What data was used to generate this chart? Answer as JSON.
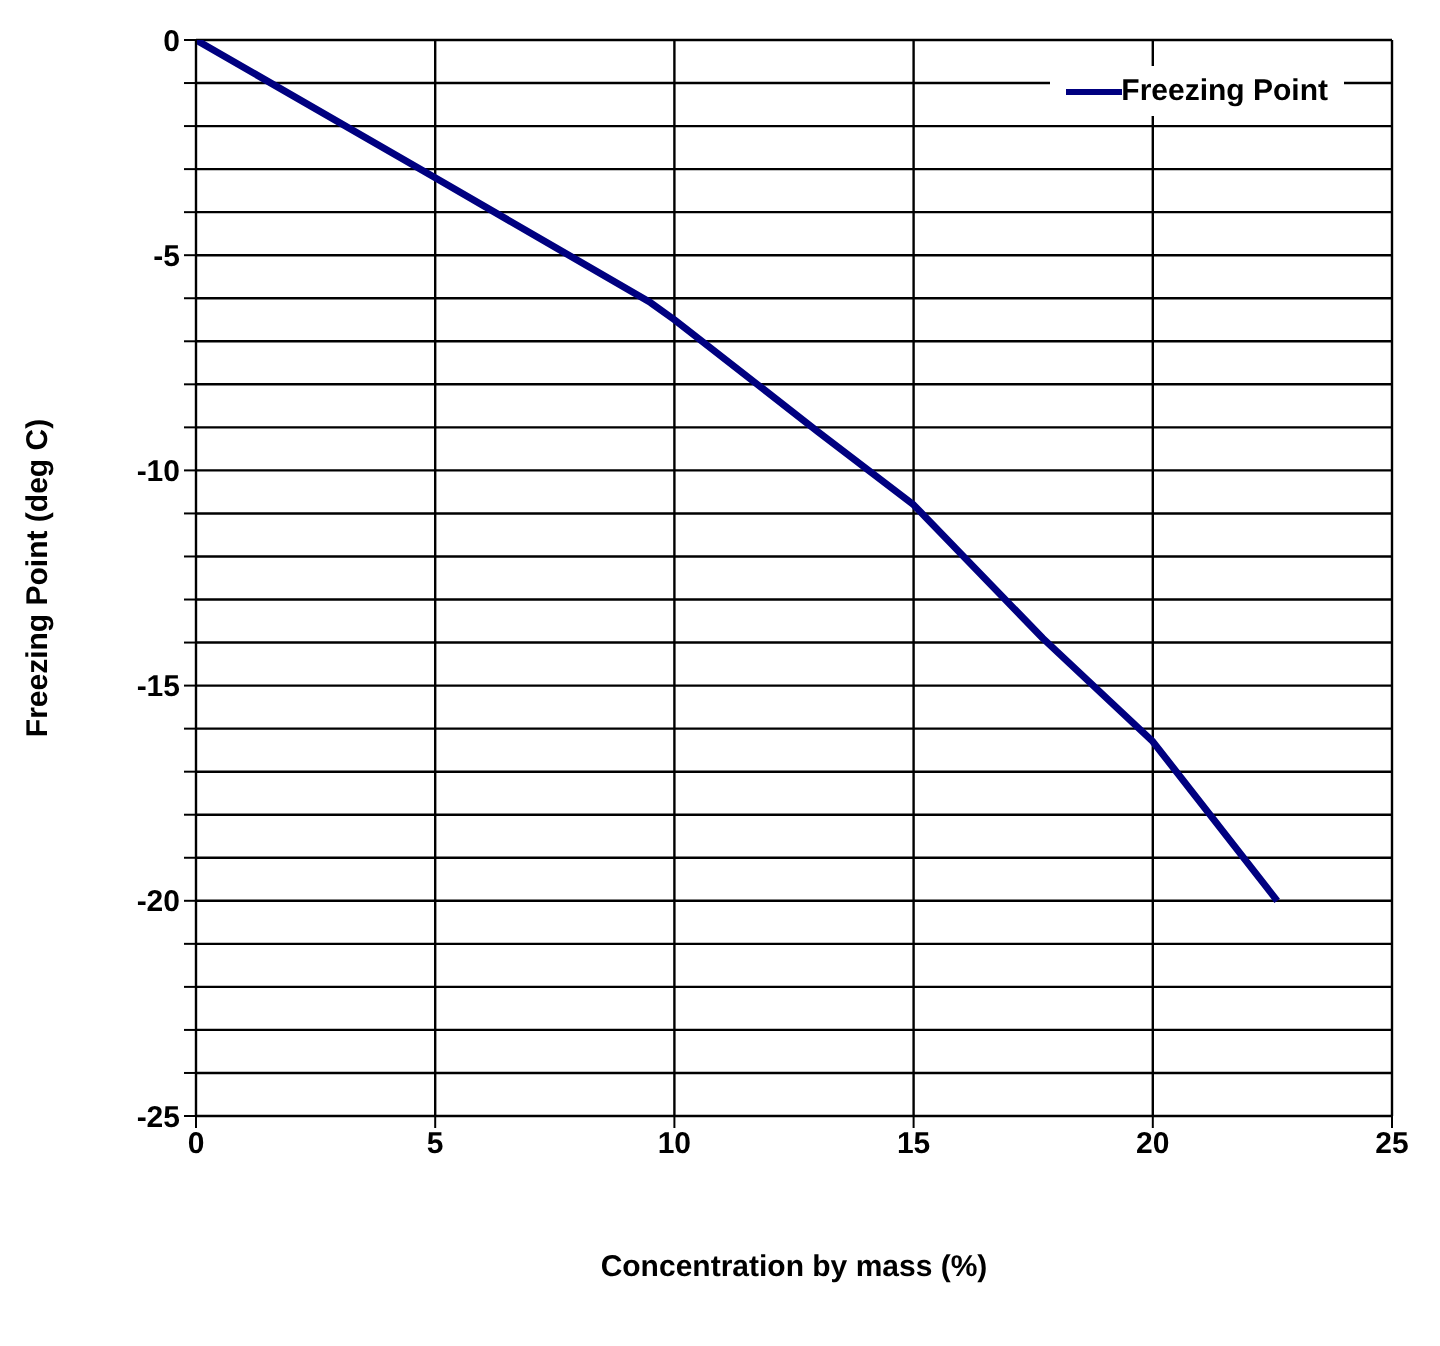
{
  "chart_data": {
    "type": "line",
    "xlabel": "Concentration by mass (%)",
    "ylabel": "Freezing Point (deg C)",
    "x": [
      0,
      5,
      9.5,
      10,
      13,
      15,
      17.7,
      20,
      22.6
    ],
    "series": [
      {
        "name": "Freezing Point",
        "color": "#000080",
        "values": [
          0,
          -3.2,
          -6.1,
          -6.5,
          -9.1,
          -10.8,
          -13.9,
          -16.3,
          -20
        ]
      }
    ],
    "xlim": [
      0,
      25
    ],
    "xticks": [
      0,
      5,
      10,
      15,
      20,
      25
    ],
    "ylim": [
      -25,
      0
    ],
    "yticks": [
      -25,
      {
        "value": -24,
        "label": null
      },
      {
        "value": -23,
        "label": null
      },
      {
        "value": -22,
        "label": null
      },
      {
        "value": -21,
        "label": null
      },
      -20,
      {
        "value": -19,
        "label": null
      },
      {
        "value": -18,
        "label": null
      },
      {
        "value": -17,
        "label": null
      },
      {
        "value": -16,
        "label": null
      },
      -15,
      {
        "value": -14,
        "label": null
      },
      {
        "value": -13,
        "label": null
      },
      {
        "value": -12,
        "label": null
      },
      {
        "value": -11,
        "label": null
      },
      -10,
      {
        "value": -9,
        "label": null
      },
      {
        "value": -8,
        "label": null
      },
      {
        "value": -7,
        "label": null
      },
      {
        "value": -6,
        "label": null
      },
      -5,
      {
        "value": -4,
        "label": null
      },
      {
        "value": -3,
        "label": null
      },
      {
        "value": -2,
        "label": null
      },
      {
        "value": -1,
        "label": null
      },
      0
    ],
    "grid": true,
    "legend": "top right",
    "marker": "none",
    "line_style": "solid"
  }
}
